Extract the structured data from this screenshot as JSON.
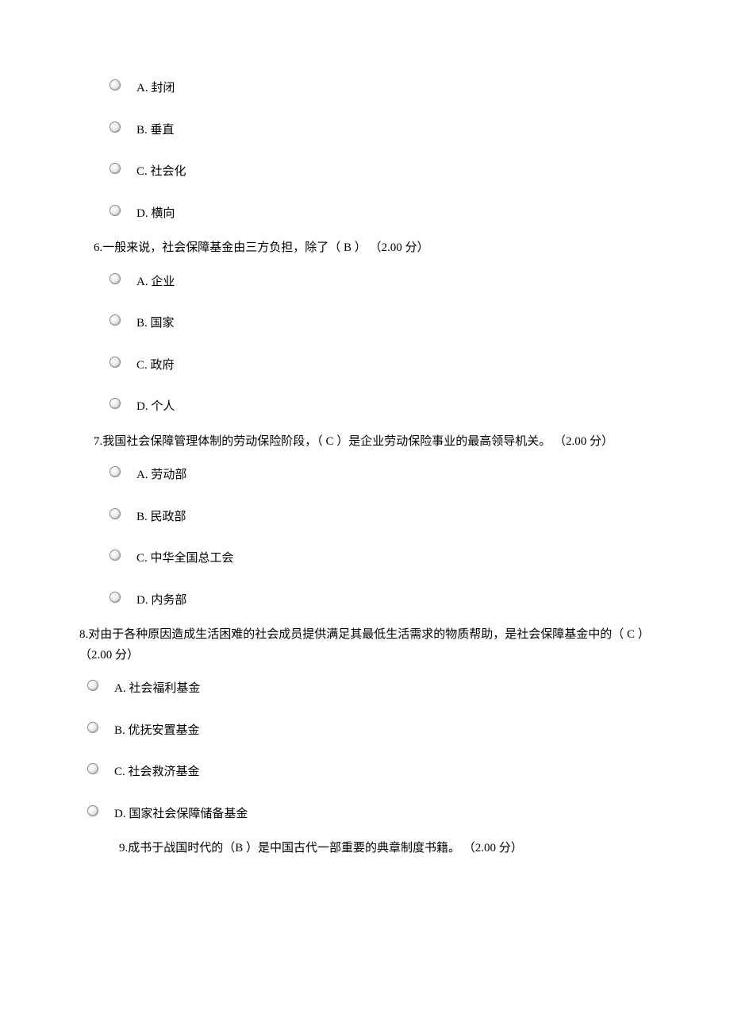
{
  "q5": {
    "options": [
      {
        "label": "A.  封闭"
      },
      {
        "label": "B.  垂直"
      },
      {
        "label": "C.  社会化"
      },
      {
        "label": "D.  横向"
      }
    ]
  },
  "q6": {
    "question": "6.一般来说，社会保障基金由三方负担，除了（   B   ） （2.00 分）",
    "options": [
      {
        "label": "A.  企业"
      },
      {
        "label": "B.  国家"
      },
      {
        "label": "C.  政府"
      },
      {
        "label": "D.  个人"
      }
    ]
  },
  "q7": {
    "question": "7.我国社会保障管理体制的劳动保险阶段，（   C   ）是企业劳动保险事业的最高领导机关。 （2.00 分）",
    "options": [
      {
        "label": "A.  劳动部"
      },
      {
        "label": "B.  民政部"
      },
      {
        "label": "C.  中华全国总工会"
      },
      {
        "label": "D.  内务部"
      }
    ]
  },
  "q8": {
    "question": "8.对由于各种原因造成生活困难的社会成员提供满足其最低生活需求的物质帮助，是社会保障基金中的（    C   ） （2.00 分）",
    "options": [
      {
        "label": "A.  社会福利基金"
      },
      {
        "label": "B.  优抚安置基金"
      },
      {
        "label": "C.  社会救济基金"
      },
      {
        "label": "D.  国家社会保障储备基金"
      }
    ]
  },
  "q9": {
    "question": "9.成书于战国时代的（B   ）是中国古代一部重要的典章制度书籍。 （2.00 分）"
  }
}
